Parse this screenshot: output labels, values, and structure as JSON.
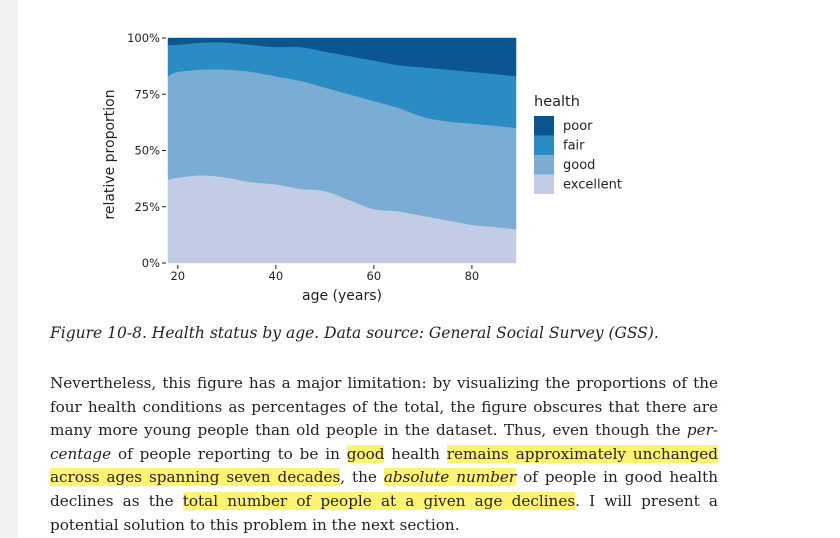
{
  "chart_data": {
    "type": "area",
    "stacked": "proportional",
    "xlabel": "age (years)",
    "ylabel": "relative proportion",
    "xlim": [
      18,
      89
    ],
    "ylim": [
      0,
      1
    ],
    "x_ticks": [
      20,
      40,
      60,
      80
    ],
    "y_ticks": [
      0,
      0.25,
      0.5,
      0.75,
      1.0
    ],
    "y_tick_labels": [
      "0%",
      "25%",
      "50%",
      "75%",
      "100%"
    ],
    "legend_title": "health",
    "legend_position": "right",
    "x": [
      18,
      20,
      25,
      30,
      35,
      40,
      45,
      50,
      55,
      60,
      65,
      70,
      75,
      80,
      85,
      89
    ],
    "series": [
      {
        "name": "excellent",
        "color": "#c2cce6",
        "values": [
          0.37,
          0.38,
          0.39,
          0.38,
          0.36,
          0.35,
          0.33,
          0.32,
          0.28,
          0.24,
          0.23,
          0.21,
          0.19,
          0.17,
          0.16,
          0.15
        ]
      },
      {
        "name": "good",
        "color": "#7aacd4",
        "values": [
          0.46,
          0.47,
          0.47,
          0.48,
          0.49,
          0.48,
          0.48,
          0.46,
          0.47,
          0.48,
          0.46,
          0.44,
          0.44,
          0.45,
          0.45,
          0.45
        ]
      },
      {
        "name": "fair",
        "color": "#2b8cc4",
        "values": [
          0.14,
          0.12,
          0.12,
          0.12,
          0.12,
          0.13,
          0.15,
          0.16,
          0.17,
          0.18,
          0.19,
          0.22,
          0.23,
          0.23,
          0.23,
          0.23
        ]
      },
      {
        "name": "poor",
        "color": "#0b5691",
        "values": [
          0.03,
          0.03,
          0.02,
          0.02,
          0.03,
          0.04,
          0.04,
          0.06,
          0.08,
          0.1,
          0.12,
          0.13,
          0.14,
          0.15,
          0.16,
          0.17
        ]
      }
    ],
    "legend_order": [
      "poor",
      "fair",
      "good",
      "excellent"
    ]
  },
  "caption": "Figure 10-8. Health status by age. Data source: General Social Survey (GSS).",
  "paragraph": {
    "p1": "Nevertheless, this figure has a major limitation: by visualizing the proportions of the four health conditions as percentages of the total, the figure obscures that there are many more young people than old people in the dataset. Thus, even though the ",
    "p2": "per­centage",
    "p3": " of people reporting to be in ",
    "p4": "good",
    "p5": " health ",
    "p6": "remains approximately unchanged across ages spanning seven decades",
    "p7": ", the ",
    "p8": "absolute number",
    "p9": " of people in good health declines as the ",
    "p10": "total number of people at a given age declines",
    "p11": ". I will present a potential solution to this problem in the next section."
  },
  "highlight_color": "#fff372"
}
